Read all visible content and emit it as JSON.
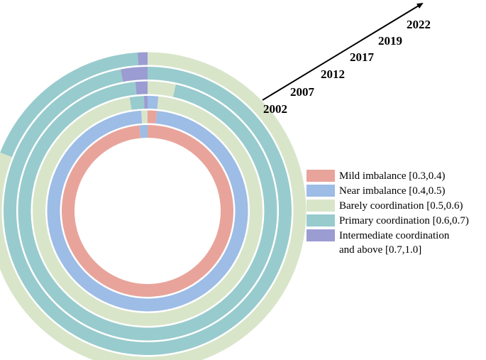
{
  "chart_data": {
    "type": "radial-ring",
    "title": "",
    "rings": [
      {
        "year": "2002",
        "segments": [
          {
            "category": "Mild imbalance [0.3,0.4)",
            "share": 0.985
          },
          {
            "category": "Near imbalance [0.4,0.5)",
            "share": 0.015
          }
        ]
      },
      {
        "year": "2007",
        "segments": [
          {
            "category": "Mild imbalance [0.3,0.4)",
            "share": 0.015
          },
          {
            "category": "Near imbalance [0.4,0.5)",
            "share": 0.975
          },
          {
            "category": "Barely coordination [0.5,0.6)",
            "share": 0.01
          }
        ]
      },
      {
        "year": "2012",
        "segments": [
          {
            "category": "Near imbalance [0.4,0.5)",
            "share": 0.015
          },
          {
            "category": "Barely coordination [0.5,0.6)",
            "share": 0.96
          },
          {
            "category": "Primary coordination [0.6,0.7)",
            "share": 0.02
          },
          {
            "category": "Intermediate coordination and above [0.7,1.0]",
            "share": 0.005
          }
        ]
      },
      {
        "year": "2017",
        "segments": [
          {
            "category": "Barely coordination [0.5,0.6)",
            "share": 0.035
          },
          {
            "category": "Primary coordination [0.6,0.7)",
            "share": 0.95
          },
          {
            "category": "Intermediate coordination and above [0.7,1.0]",
            "share": 0.015
          }
        ]
      },
      {
        "year": "2019",
        "segments": [
          {
            "category": "Primary coordination [0.6,0.7)",
            "share": 0.97
          },
          {
            "category": "Intermediate coordination and above [0.7,1.0]",
            "share": 0.03
          }
        ]
      },
      {
        "year": "2022",
        "segments": [
          {
            "category": "Barely coordination [0.5,0.6)",
            "share": 0.81
          },
          {
            "category": "Primary coordination [0.6,0.7)",
            "share": 0.18
          },
          {
            "category": "Intermediate coordination and above [0.7,1.0]",
            "share": 0.01
          }
        ]
      }
    ],
    "legend": [
      {
        "label": "Mild imbalance [0.3,0.4)",
        "color": "#E8A49B"
      },
      {
        "label": "Near imbalance [0.4,0.5)",
        "color": "#9DBCE6"
      },
      {
        "label": "Barely coordination [0.5,0.6)",
        "color": "#D9E5C9"
      },
      {
        "label": "Primary coordination [0.6,0.7)",
        "color": "#98CBCD"
      },
      {
        "label_lines": [
          "Intermediate coordination",
          "and above [0.7,1.0]"
        ],
        "color": "#9B9CD2"
      }
    ],
    "legend_position": "right"
  }
}
